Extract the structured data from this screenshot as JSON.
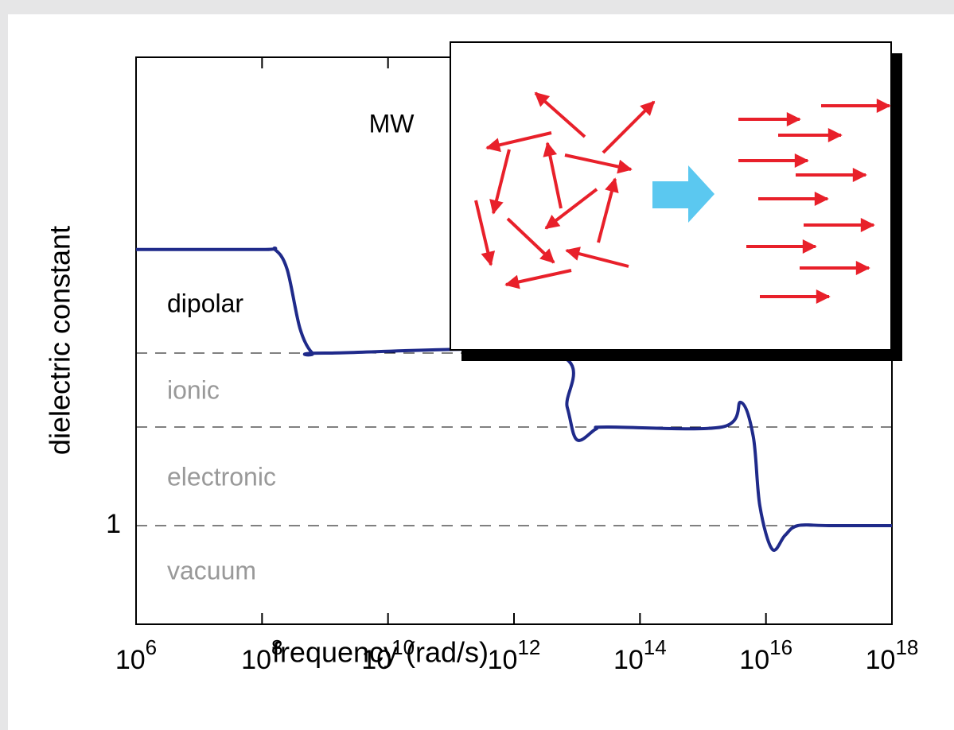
{
  "chart_data": {
    "type": "line",
    "xlabel": "frequency (rad/s)",
    "ylabel": "dielectric constant",
    "xscale": "log",
    "xlim": [
      1000000.0,
      1e+18
    ],
    "xticks": [
      {
        "value": 1000000.0,
        "base": "10",
        "exponent": "6"
      },
      {
        "value": 100000000.0,
        "base": "10",
        "exponent": "8"
      },
      {
        "value": 10000000000.0,
        "base": "10",
        "exponent": "10"
      },
      {
        "value": 1000000000000.0,
        "base": "10",
        "exponent": "12"
      },
      {
        "value": 100000000000000.0,
        "base": "10",
        "exponent": "14"
      },
      {
        "value": 1e+16,
        "base": "10",
        "exponent": "16"
      },
      {
        "value": 1e+18,
        "base": "10",
        "exponent": "18"
      }
    ],
    "ylim": [
      0,
      5.75
    ],
    "yticks": [
      1
    ],
    "reference_lines": [
      2.75,
      2.0
    ],
    "color": "#1f2a8a",
    "x": [
      1000000.0,
      100000000.0,
      160000000.0,
      250000000.0,
      400000000.0,
      630000000.0,
      1000000000.0,
      4000000000000.0,
      7000000000000.0,
      10000000000000.0,
      20000000000000.0,
      30000000000000.0,
      2000000000000000.0,
      4000000000000000.0,
      6300000000000000.0,
      8000000000000000.0,
      1.26e+16,
      2e+16,
      3.2e+16,
      1e+17,
      1e+18
    ],
    "values": [
      3.8,
      3.8,
      3.8,
      3.6,
      3.0,
      2.75,
      2.75,
      2.75,
      2.2,
      1.87,
      1.98,
      2.0,
      2.0,
      2.25,
      1.9,
      1.2,
      0.76,
      0.9,
      1.0,
      1.0,
      1.0
    ],
    "annotations": [
      "MW",
      "dipolar",
      "ionic",
      "electronic",
      "vacuum"
    ]
  }
}
